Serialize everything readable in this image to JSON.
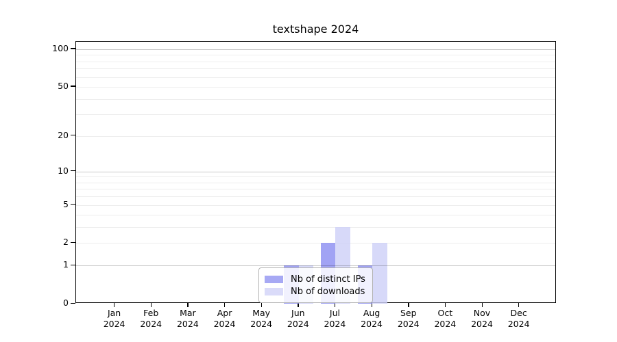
{
  "chart_data": {
    "type": "bar",
    "title": "textshape 2024",
    "categories": [
      "Jan",
      "Feb",
      "Mar",
      "Apr",
      "May",
      "Jun",
      "Jul",
      "Aug",
      "Sep",
      "Oct",
      "Nov",
      "Dec"
    ],
    "category_year": "2024",
    "series": [
      {
        "name": "Nb of distinct IPs",
        "color": "#a7a9f4",
        "bar_rgba": "rgba(137,140,241,0.8)",
        "values": [
          0,
          0,
          0,
          0,
          0,
          1,
          2,
          1,
          0,
          0,
          0,
          0
        ]
      },
      {
        "name": "Nb of downloads",
        "color": "#dadbf9",
        "bar_rgba": "rgba(205,207,247,0.8)",
        "values": [
          0,
          0,
          0,
          0,
          0,
          1,
          3,
          2,
          0,
          0,
          0,
          0
        ]
      }
    ],
    "y_scale": "log1p",
    "y_ticks": [
      0,
      1,
      2,
      5,
      10,
      20,
      50,
      100
    ],
    "gridlines": {
      "major": [
        1,
        10,
        100
      ],
      "minor": [
        2,
        3,
        4,
        5,
        6,
        7,
        8,
        9,
        20,
        30,
        40,
        50,
        60,
        70,
        80,
        90
      ]
    },
    "legend": {
      "entries": [
        "Nb of distinct IPs",
        "Nb of downloads"
      ],
      "location": "lower center"
    },
    "xlabel": "",
    "ylabel": "",
    "grid": true
  },
  "colors": {
    "grid_major": "rgba(0,0,0,0.21)",
    "grid_minor": "#ededed",
    "frame": "#000000",
    "text": "#000000",
    "legend_border": "#b3b3b3"
  }
}
